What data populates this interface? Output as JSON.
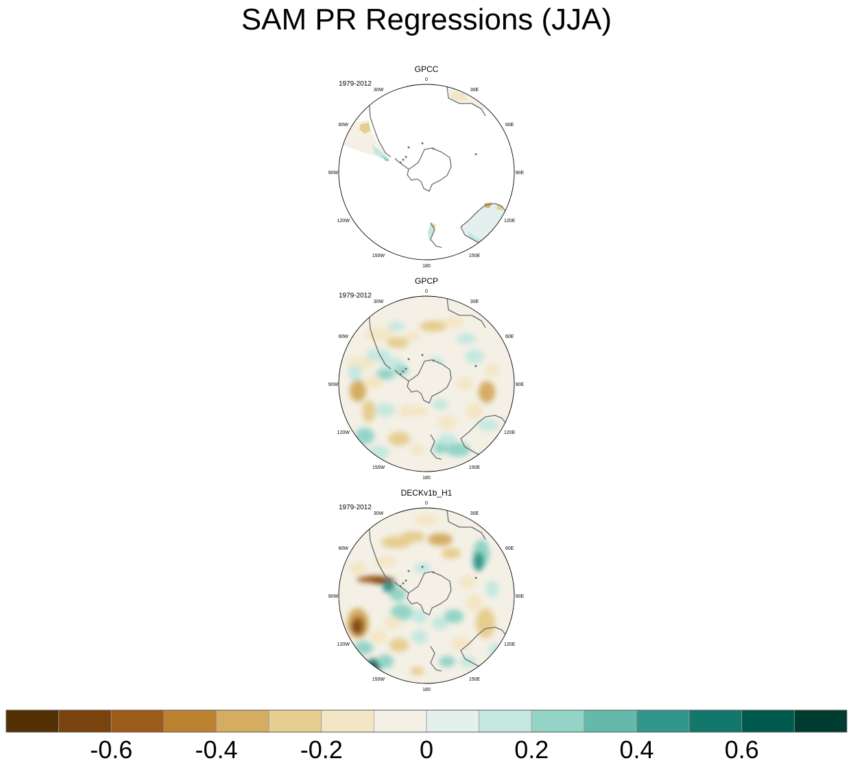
{
  "title": "SAM PR Regressions (JJA)",
  "panels": [
    {
      "name": "GPCC",
      "period": "1979-2012",
      "land_only": true,
      "longitude_labels": [
        "0",
        "30E",
        "60E",
        "90E",
        "120E",
        "150E",
        "180",
        "150W",
        "120W",
        "90W",
        "60W",
        "30W"
      ]
    },
    {
      "name": "GPCP",
      "period": "1979-2012",
      "land_only": false,
      "longitude_labels": [
        "0",
        "30E",
        "60E",
        "90E",
        "120E",
        "150E",
        "180",
        "150W",
        "120W",
        "90W",
        "60W",
        "30W"
      ]
    },
    {
      "name": "DECKv1b_H1",
      "period": "1979-2012",
      "land_only": false,
      "longitude_labels": [
        "0",
        "30E",
        "60E",
        "90E",
        "120E",
        "150E",
        "180",
        "150W",
        "120W",
        "90W",
        "60W",
        "30W"
      ]
    }
  ],
  "colorbar": {
    "levels": [
      -0.7,
      -0.6,
      -0.5,
      -0.4,
      -0.3,
      -0.2,
      -0.1,
      0,
      0.1,
      0.2,
      0.3,
      0.4,
      0.5,
      0.6,
      0.7
    ],
    "colors": [
      "#543005",
      "#7a430d",
      "#9b5b19",
      "#bd8230",
      "#d4ad62",
      "#e6cd90",
      "#f4e6c5",
      "#f4f0e6",
      "#e3f0ee",
      "#c4e8e0",
      "#93d4c7",
      "#65b9aa",
      "#33968a",
      "#12786c",
      "#015a4e",
      "#003c30"
    ],
    "labels": [
      "-0.6",
      "-0.4",
      "-0.2",
      "0",
      "0.2",
      "0.4",
      "0.6"
    ]
  },
  "chart_data": {
    "type": "heatmap",
    "title": "SAM PR Regressions (JJA)",
    "projection": "south polar stereographic",
    "colorbar_range": [
      -0.7,
      0.7
    ],
    "colorbar_step": 0.1,
    "panels": [
      "GPCC",
      "GPCP",
      "DECKv1b_H1"
    ]
  }
}
